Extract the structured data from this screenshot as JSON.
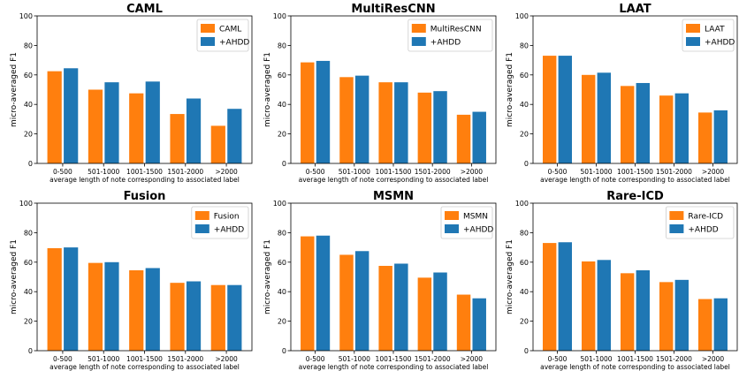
{
  "colors": {
    "base": "#ff7f0e",
    "ahdd": "#1f77b4",
    "axis": "#000000",
    "legend_border": "#cccccc"
  },
  "chart_data": [
    {
      "type": "bar",
      "title": "CAML",
      "xlabel": "average length of note corresponding to associated label",
      "ylabel": "micro-averaged F1",
      "categories": [
        "0-500",
        "501-1000",
        "1001-1500",
        "1501-2000",
        ">2000"
      ],
      "ylim": [
        0,
        100
      ],
      "yticks": [
        "0",
        "20",
        "40",
        "60",
        "80",
        "100"
      ],
      "legend_position": "upper right",
      "series": [
        {
          "name": "CAML",
          "values": [
            62.5,
            50,
            47.5,
            33.5,
            25.5
          ]
        },
        {
          "name": "+AHDD",
          "values": [
            64.5,
            55,
            55.5,
            44,
            37
          ]
        }
      ]
    },
    {
      "type": "bar",
      "title": "MultiResCNN",
      "xlabel": "average length of note corresponding to associated label",
      "ylabel": "micro-averaged F1",
      "categories": [
        "0-500",
        "501-1000",
        "1001-1500",
        "1501-2000",
        ">2000"
      ],
      "ylim": [
        0,
        100
      ],
      "yticks": [
        "0",
        "20",
        "40",
        "60",
        "80",
        "100"
      ],
      "legend_position": "upper right",
      "series": [
        {
          "name": "MultiResCNN",
          "values": [
            68.5,
            58.5,
            55,
            48,
            33
          ]
        },
        {
          "name": "+AHDD",
          "values": [
            69.5,
            59.5,
            55,
            49,
            35
          ]
        }
      ]
    },
    {
      "type": "bar",
      "title": "LAAT",
      "xlabel": "average length of note corresponding to associated label",
      "ylabel": "micro-averaged F1",
      "categories": [
        "0-500",
        "501-1000",
        "1001-1500",
        "1501-2000",
        ">2000"
      ],
      "ylim": [
        0,
        100
      ],
      "yticks": [
        "0",
        "20",
        "40",
        "60",
        "80",
        "100"
      ],
      "legend_position": "upper right",
      "series": [
        {
          "name": "LAAT",
          "values": [
            73,
            60,
            52.5,
            46,
            34.5
          ]
        },
        {
          "name": "+AHDD",
          "values": [
            73,
            61.5,
            54.5,
            47.5,
            36
          ]
        }
      ]
    },
    {
      "type": "bar",
      "title": "Fusion",
      "xlabel": "average length of note corresponding to associated label",
      "ylabel": "micro-averaged F1",
      "categories": [
        "0-500",
        "501-1000",
        "1001-1500",
        "1501-2000",
        ">2000"
      ],
      "ylim": [
        0,
        100
      ],
      "yticks": [
        "0",
        "20",
        "40",
        "60",
        "80",
        "100"
      ],
      "legend_position": "upper right",
      "series": [
        {
          "name": "Fusion",
          "values": [
            69.5,
            59.5,
            54.5,
            46,
            44.5
          ]
        },
        {
          "name": "+AHDD",
          "values": [
            70,
            60,
            56,
            47,
            44.5
          ]
        }
      ]
    },
    {
      "type": "bar",
      "title": "MSMN",
      "xlabel": "average length of note corresponding to associated label",
      "ylabel": "micro-averaged F1",
      "categories": [
        "0-500",
        "501-1000",
        "1001-1500",
        "1501-2000",
        ">2000"
      ],
      "ylim": [
        0,
        100
      ],
      "yticks": [
        "0",
        "20",
        "40",
        "60",
        "80",
        "100"
      ],
      "legend_position": "upper right",
      "series": [
        {
          "name": "MSMN",
          "values": [
            77.5,
            65,
            57.5,
            49.5,
            38
          ]
        },
        {
          "name": "+AHDD",
          "values": [
            78,
            67.5,
            59,
            53,
            35.5
          ]
        }
      ]
    },
    {
      "type": "bar",
      "title": "Rare-ICD",
      "xlabel": "average length of note corresponding to associated label",
      "ylabel": "micro-averaged F1",
      "categories": [
        "0-500",
        "501-1000",
        "1001-1500",
        "1501-2000",
        ">2000"
      ],
      "ylim": [
        0,
        100
      ],
      "yticks": [
        "0",
        "20",
        "40",
        "60",
        "80",
        "100"
      ],
      "legend_position": "upper right",
      "series": [
        {
          "name": "Rare-ICD",
          "values": [
            73,
            60.5,
            52.5,
            46.5,
            35
          ]
        },
        {
          "name": "+AHDD",
          "values": [
            73.5,
            61.5,
            54.5,
            48,
            35.5
          ]
        }
      ]
    }
  ]
}
